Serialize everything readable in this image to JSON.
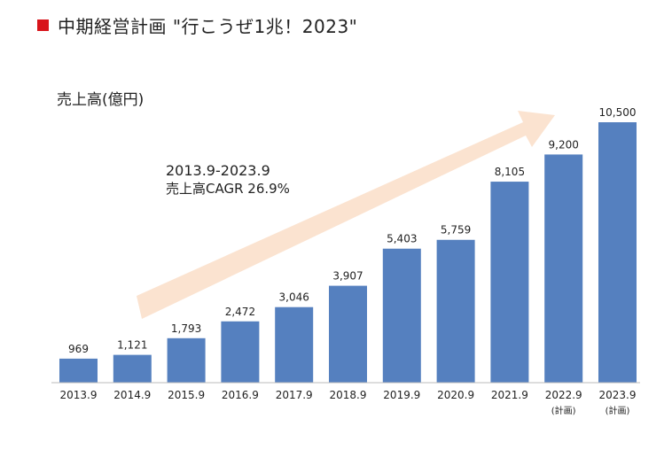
{
  "header": {
    "title": "中期経営計画 \"行こうぜ1兆！2023\"",
    "marker_color": "#d8141b"
  },
  "chart_data": {
    "type": "bar",
    "ylabel": "売上高(億円)",
    "categories": [
      "2013.9",
      "2014.9",
      "2015.9",
      "2016.9",
      "2017.9",
      "2018.9",
      "2019.9",
      "2020.9",
      "2021.9",
      "2022.9",
      "2023.9"
    ],
    "category_notes": [
      "",
      "",
      "",
      "",
      "",
      "",
      "",
      "",
      "",
      "(計画)",
      "(計画)"
    ],
    "values": [
      969,
      1121,
      1793,
      2472,
      3046,
      3907,
      5403,
      5759,
      8105,
      9200,
      10500
    ],
    "value_labels": [
      "969",
      "1,121",
      "1,793",
      "2,472",
      "3,046",
      "3,907",
      "5,403",
      "5,759",
      "8,105",
      "9,200",
      "10,500"
    ],
    "ylim": [
      0,
      10500
    ],
    "grid": false,
    "bar_color": "#5580bf",
    "trend_arrow_color": "#fbe3d0",
    "annotation": {
      "line1": "2013.9-2023.9",
      "line2": "売上高CAGR  26.9%"
    }
  }
}
